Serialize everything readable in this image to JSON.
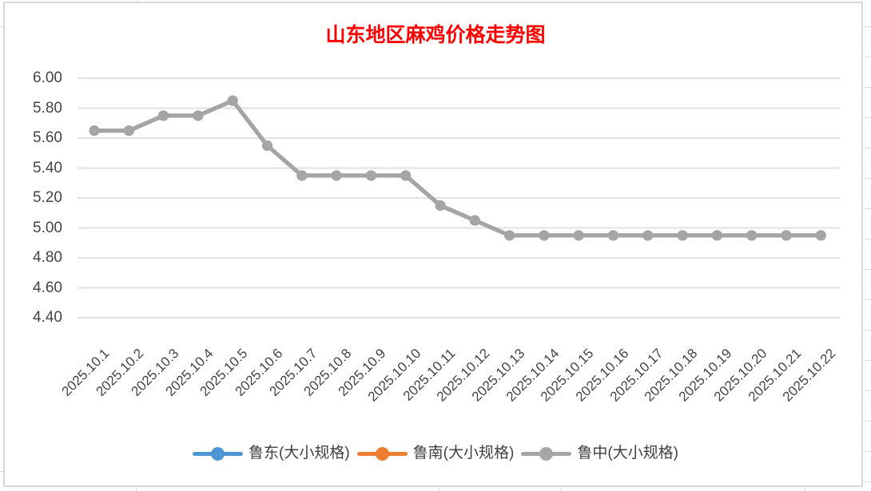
{
  "title": {
    "text": "山东地区麻鸡价格走势图",
    "color": "#ff0000"
  },
  "chart_data": {
    "type": "line",
    "title": "山东地区麻鸡价格走势图",
    "x": [
      "2025.10.1",
      "2025.10.2",
      "2025.10.3",
      "2025.10.4",
      "2025.10.5",
      "2025.10.6",
      "2025.10.7",
      "2025.10.8",
      "2025.10.9",
      "2025.10.10",
      "2025.10.11",
      "2025.10.12",
      "2025.10.13",
      "2025.10.14",
      "2025.10.15",
      "2025.10.16",
      "2025.10.17",
      "2025.10.18",
      "2025.10.19",
      "2025.10.20",
      "2025.10.21",
      "2025.10.22"
    ],
    "series": [
      {
        "name": "鲁东(大小规格)",
        "color": "#4e96d3",
        "values": [
          5.65,
          5.65,
          5.75,
          5.75,
          5.85,
          5.55,
          5.35,
          5.35,
          5.35,
          5.35,
          5.15,
          5.05,
          4.95,
          4.95,
          4.95,
          4.95,
          4.95,
          4.95,
          4.95,
          4.95,
          4.95,
          4.95
        ]
      },
      {
        "name": "鲁南(大小规格)",
        "color": "#ed7d31",
        "values": [
          5.65,
          5.65,
          5.75,
          5.75,
          5.85,
          5.55,
          5.35,
          5.35,
          5.35,
          5.35,
          5.15,
          5.05,
          4.95,
          4.95,
          4.95,
          4.95,
          4.95,
          4.95,
          4.95,
          4.95,
          4.95,
          4.95
        ]
      },
      {
        "name": "鲁中(大小规格)",
        "color": "#a5a5a5",
        "values": [
          5.65,
          5.65,
          5.75,
          5.75,
          5.85,
          5.55,
          5.35,
          5.35,
          5.35,
          5.35,
          5.15,
          5.05,
          4.95,
          4.95,
          4.95,
          4.95,
          4.95,
          4.95,
          4.95,
          4.95,
          4.95,
          4.95
        ]
      }
    ],
    "ylim": [
      4.4,
      6.0
    ],
    "yticks": [
      "6.00",
      "5.80",
      "5.60",
      "5.40",
      "5.20",
      "5.00",
      "4.80",
      "4.60",
      "4.40"
    ],
    "xlabel": "",
    "ylabel": "",
    "grid": true,
    "legend_position": "bottom",
    "note_visible_series": "only gray series visible; blue and orange fully overlapped"
  },
  "colors": {
    "gridline": "#e2e2e2",
    "chart_border": "#d8d8d8",
    "axis_text": "#444444",
    "title": "#ff0000"
  }
}
